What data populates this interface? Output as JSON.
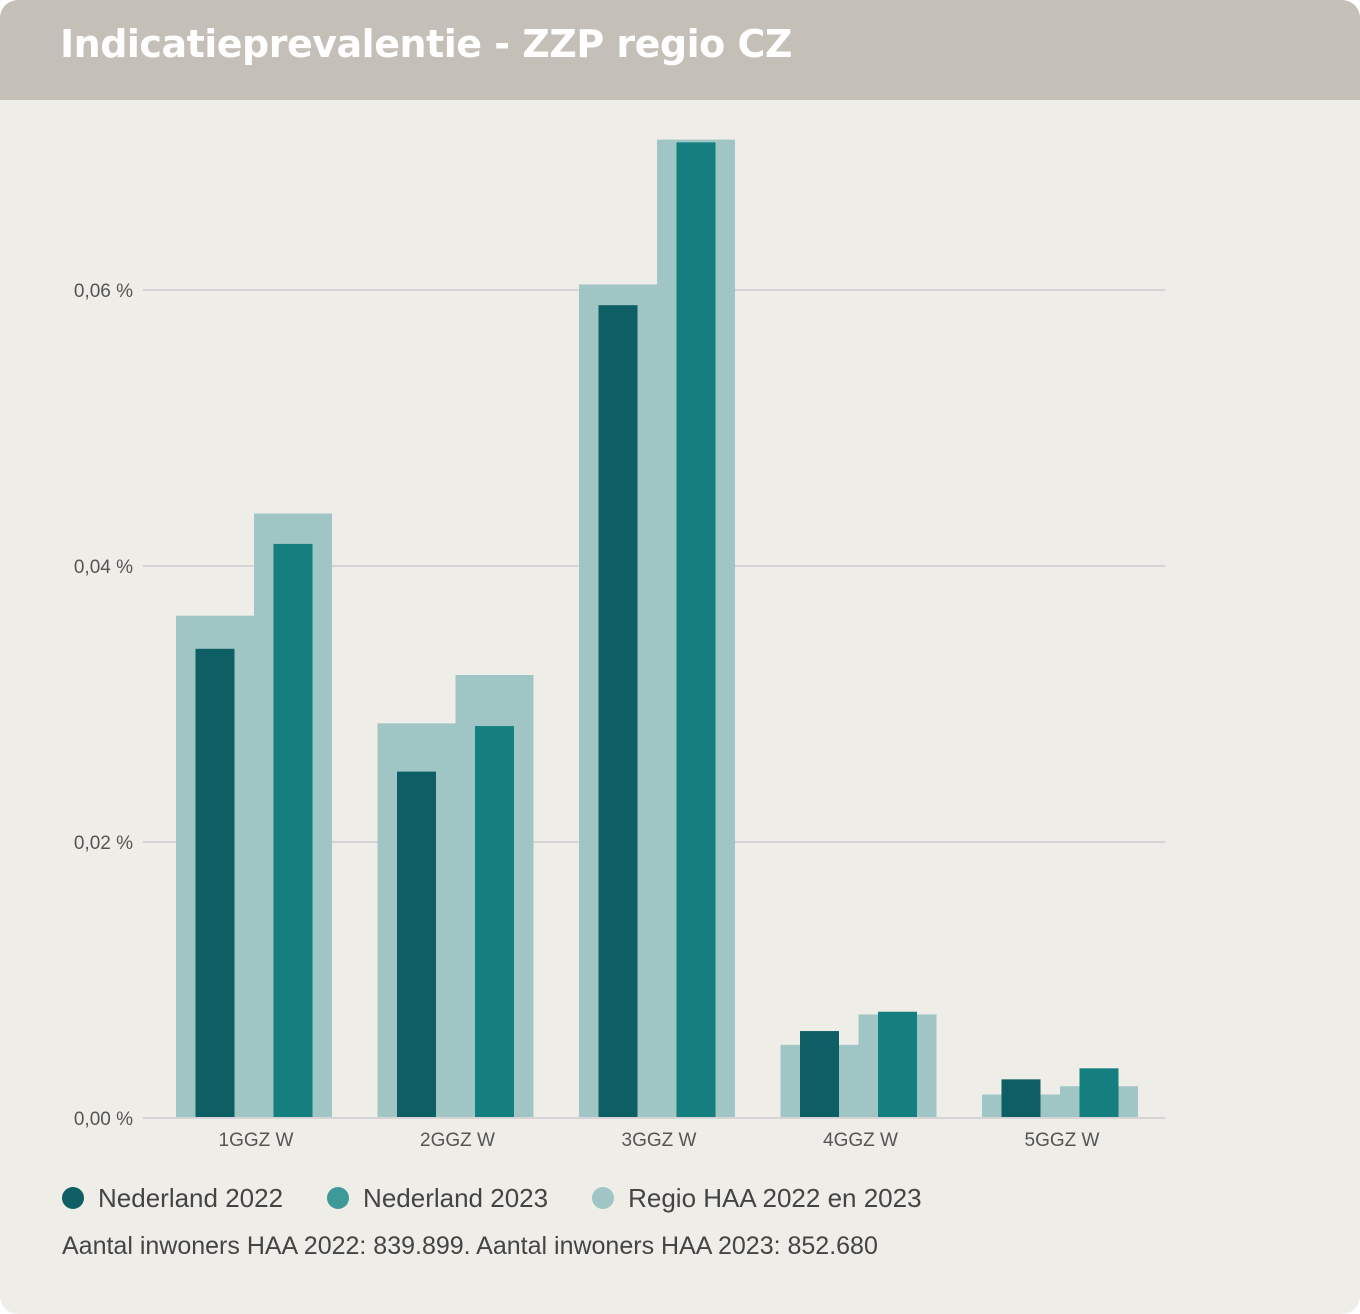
{
  "header": {
    "title": "Indicatieprevalentie - ZZP regio CZ"
  },
  "chart_data": {
    "type": "bar",
    "categories": [
      "1GGZ W",
      "2GGZ W",
      "3GGZ W",
      "4GGZ W",
      "5GGZ W"
    ],
    "ylim": [
      0,
      0.07
    ],
    "yticks": [
      0,
      0.02,
      0.04,
      0.06
    ],
    "ytick_labels": [
      "0,00 %",
      "0,02 %",
      "0,04 %",
      "0,06 %"
    ],
    "grid": true,
    "series": [
      {
        "name": "Nederland 2022",
        "color": "#0d5f63",
        "values": [
          0.034,
          0.0251,
          0.0589,
          0.0063,
          0.0028
        ]
      },
      {
        "name": "Nederland 2023",
        "color": "#147f7e",
        "values": [
          0.0416,
          0.0284,
          0.0707,
          0.0077,
          0.0036
        ]
      },
      {
        "name": "Regio HAA 2022",
        "color": "#a0c5c5",
        "values": [
          0.0364,
          0.0286,
          0.0604,
          0.0053,
          0.0017
        ]
      },
      {
        "name": "Regio HAA 2023",
        "color": "#a0c5c5",
        "values": [
          0.0438,
          0.0321,
          0.0709,
          0.0075,
          0.0023
        ]
      }
    ]
  },
  "legend": {
    "items": [
      {
        "label": "Nederland 2022",
        "color": "#0d5f63"
      },
      {
        "label": "Nederland 2023",
        "color": "#3d9a98"
      },
      {
        "label": "Regio HAA 2022 en 2023",
        "color": "#a0c5c5"
      }
    ]
  },
  "footnote": "Aantal inwoners HAA 2022: 839.899. Aantal inwoners HAA 2023: 852.680"
}
